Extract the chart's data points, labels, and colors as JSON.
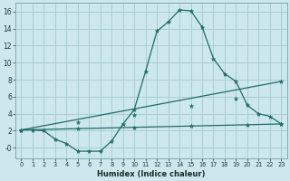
{
  "xlabel": "Humidex (Indice chaleur)",
  "background_color": "#cde8ec",
  "grid_color": "#a8cdd4",
  "line_color": "#1e6b6b",
  "xlim": [
    -0.5,
    23.5
  ],
  "ylim": [
    -1.2,
    17.0
  ],
  "yticks": [
    0,
    2,
    4,
    6,
    8,
    10,
    12,
    14,
    16
  ],
  "ytick_labels": [
    "-0",
    "2",
    "4",
    "6",
    "8",
    "10",
    "12",
    "14",
    "16"
  ],
  "xticks": [
    0,
    1,
    2,
    3,
    4,
    5,
    6,
    7,
    8,
    9,
    10,
    11,
    12,
    13,
    14,
    15,
    16,
    17,
    18,
    19,
    20,
    21,
    22,
    23
  ],
  "curve1_x": [
    0,
    1,
    2,
    3,
    4,
    5,
    6,
    7,
    8,
    9,
    10,
    11,
    12,
    13,
    14,
    15,
    16,
    17,
    18,
    19,
    20,
    21,
    22,
    23
  ],
  "curve1_y": [
    2.1,
    2.1,
    2.0,
    1.0,
    0.5,
    -0.4,
    -0.4,
    -0.4,
    0.8,
    2.8,
    4.5,
    9.0,
    13.7,
    14.8,
    16.2,
    16.1,
    14.2,
    10.5,
    8.7,
    7.8,
    5.0,
    4.0,
    3.7,
    2.8
  ],
  "curve2_x": [
    0,
    23
  ],
  "curve2_y": [
    2.1,
    7.8
  ],
  "curve2_markers_x": [
    0,
    5,
    10,
    15,
    19,
    23
  ],
  "curve2_markers_y": [
    2.1,
    3.0,
    3.9,
    4.9,
    5.8,
    7.8
  ],
  "curve3_x": [
    0,
    23
  ],
  "curve3_y": [
    2.1,
    2.8
  ],
  "curve3_markers_x": [
    0,
    5,
    10,
    15,
    20,
    23
  ],
  "curve3_markers_y": [
    2.1,
    2.25,
    2.4,
    2.55,
    2.68,
    2.8
  ]
}
